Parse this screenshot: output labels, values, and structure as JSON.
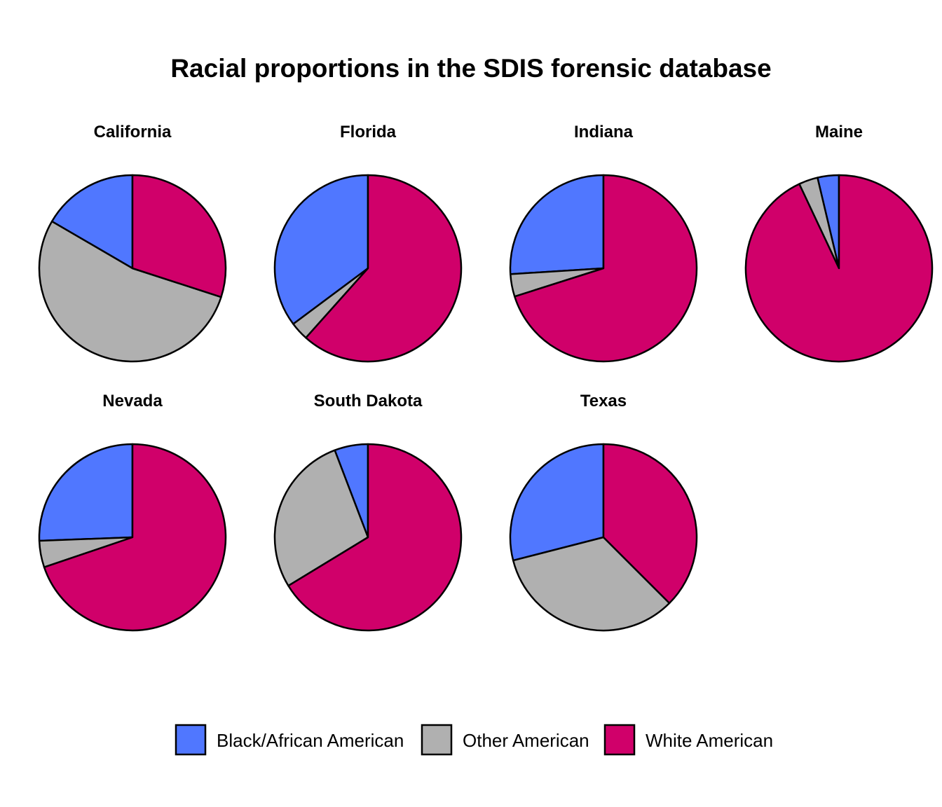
{
  "chart_data": {
    "type": "pie",
    "title": "Racial proportions in the SDIS forensic database",
    "categories": [
      "Black/African American",
      "Other American",
      "White American"
    ],
    "colors": {
      "Black/African American": "#5077FF",
      "Other American": "#B0B0B0",
      "White American": "#D0006A"
    },
    "start_angle": "12 o'clock",
    "direction": "counterclockwise",
    "legend_position": "bottom",
    "panels": [
      {
        "name": "California",
        "values": {
          "Black/African American": 0.166,
          "Other American": 0.534,
          "White American": 0.3
        }
      },
      {
        "name": "Florida",
        "values": {
          "Black/African American": 0.352,
          "Other American": 0.032,
          "White American": 0.616
        }
      },
      {
        "name": "Indiana",
        "values": {
          "Black/African American": 0.26,
          "Other American": 0.039,
          "White American": 0.701
        }
      },
      {
        "name": "Maine",
        "values": {
          "Black/African American": 0.037,
          "Other American": 0.033,
          "White American": 0.93
        }
      },
      {
        "name": "Nevada",
        "values": {
          "Black/African American": 0.256,
          "Other American": 0.046,
          "White American": 0.698
        }
      },
      {
        "name": "South Dakota",
        "values": {
          "Black/African American": 0.058,
          "Other American": 0.279,
          "White American": 0.663
        }
      },
      {
        "name": "Texas",
        "values": {
          "Black/African American": 0.29,
          "Other American": 0.335,
          "White American": 0.375
        }
      }
    ]
  }
}
